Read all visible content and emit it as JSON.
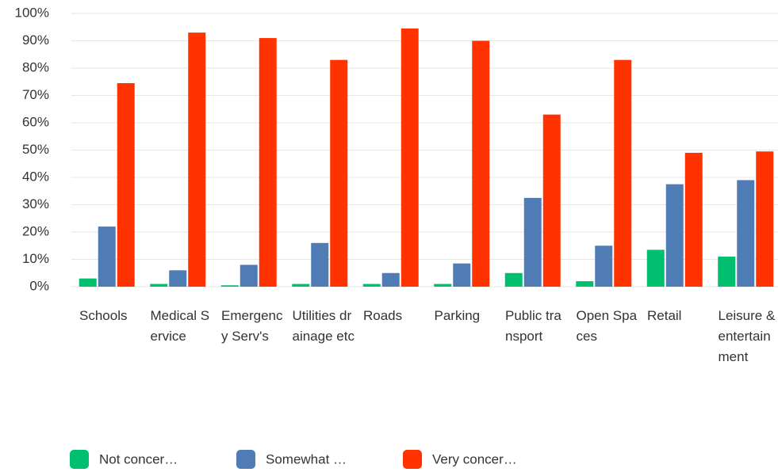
{
  "chart_data": {
    "type": "bar",
    "categories": [
      "Schools",
      "Medical Service",
      "Emergency Serv's",
      "Utilities drainage etc",
      "Roads",
      "Parking",
      "Public transport",
      "Open Spaces",
      "Retail",
      "Leisure & entertainment"
    ],
    "series": [
      {
        "name": "Not concer…",
        "color": "#00bf6f",
        "values": [
          3,
          1,
          0.5,
          1,
          1,
          1,
          5,
          2,
          13.5,
          11
        ]
      },
      {
        "name": "Somewhat …",
        "color": "#507cb6",
        "values": [
          22,
          6,
          8,
          16,
          5,
          8.5,
          32.5,
          15,
          37.5,
          39
        ]
      },
      {
        "name": "Very concer…",
        "color": "#ff3300",
        "values": [
          74.5,
          93,
          91,
          83,
          94.5,
          90,
          63,
          83,
          49,
          49.5
        ]
      }
    ],
    "ylim": [
      0,
      100
    ],
    "yticks": [
      {
        "value": 0,
        "label": "0%"
      },
      {
        "value": 10,
        "label": "10%"
      },
      {
        "value": 20,
        "label": "20%"
      },
      {
        "value": 30,
        "label": "30%"
      },
      {
        "value": 40,
        "label": "40%"
      },
      {
        "value": 50,
        "label": "50%"
      },
      {
        "value": 60,
        "label": "60%"
      },
      {
        "value": 70,
        "label": "70%"
      },
      {
        "value": 80,
        "label": "80%"
      },
      {
        "value": 90,
        "label": "90%"
      },
      {
        "value": 100,
        "label": "100%"
      }
    ],
    "grid": true,
    "legend": "bottom"
  }
}
